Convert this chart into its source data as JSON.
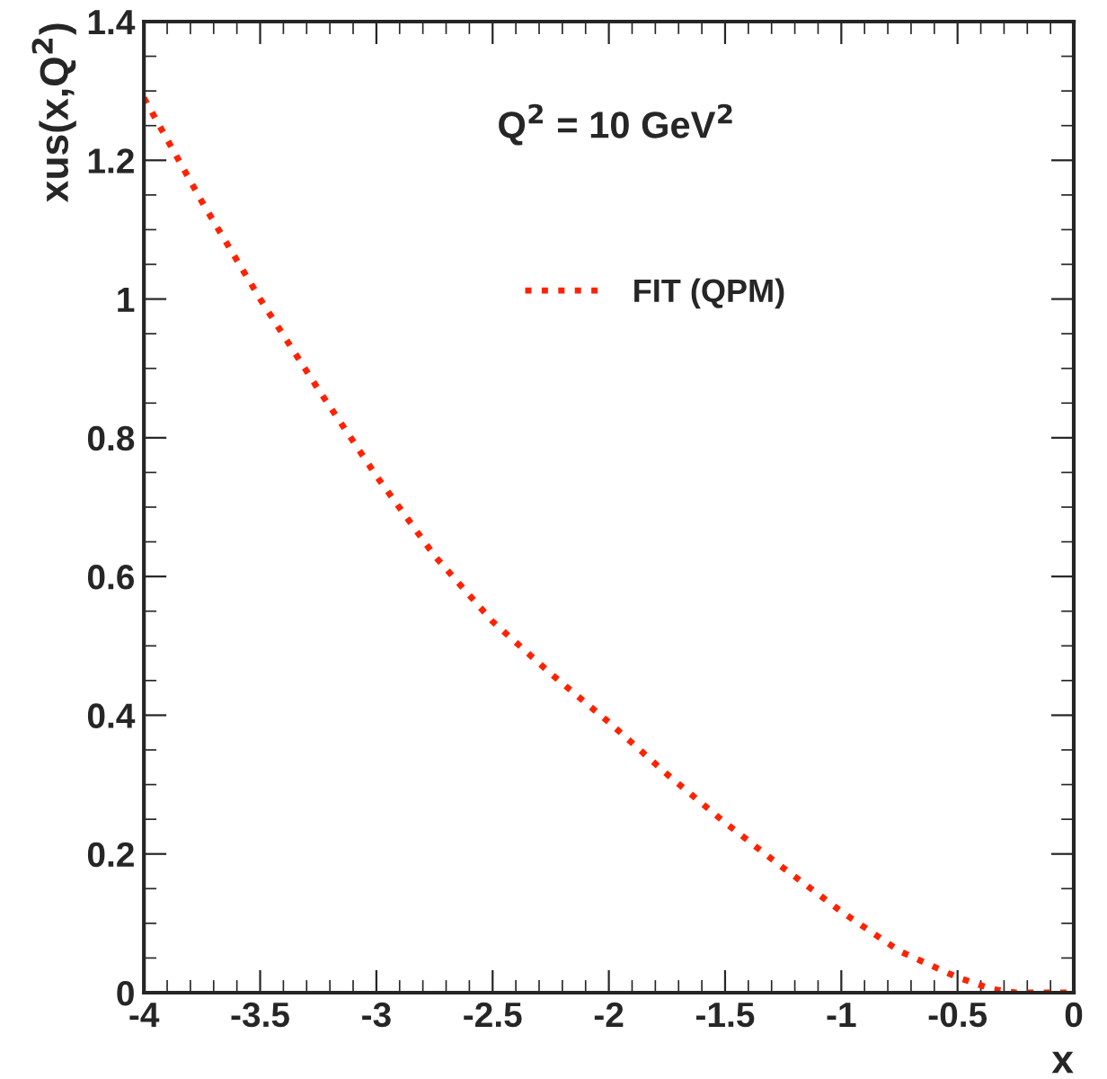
{
  "chart_data": {
    "type": "line",
    "xlabel": "x",
    "ylabel": "xus(x,Q$^{2}$)",
    "annotations": [
      "Q$^{2}$ = 10 GeV$^{2}$"
    ],
    "x": [
      -4,
      -3.75,
      -3.5,
      -3.25,
      -3,
      -2.75,
      -2.5,
      -2.25,
      -2,
      -1.75,
      -1.5,
      -1.25,
      -1,
      -0.75,
      -0.5,
      -0.35,
      -0.25,
      0
    ],
    "series": [
      {
        "name": "FIT (QPM)",
        "color": "#ff2200",
        "line_style": "dotted",
        "values": [
          1.29,
          1.14,
          1.0,
          0.87,
          0.745,
          0.63,
          0.535,
          0.46,
          0.39,
          0.315,
          0.245,
          0.18,
          0.117,
          0.06,
          0.022,
          0.005,
          0,
          0
        ]
      }
    ],
    "xlim": [
      -4,
      0
    ],
    "ylim": [
      0,
      1.4
    ],
    "xticks": [
      -4,
      -3.5,
      -3,
      -2.5,
      -2,
      -1.5,
      -1,
      -0.5,
      0
    ],
    "yticks": [
      0,
      0.2,
      0.4,
      0.6,
      0.8,
      1,
      1.2,
      1.4
    ],
    "legend": "top",
    "grid": false
  }
}
